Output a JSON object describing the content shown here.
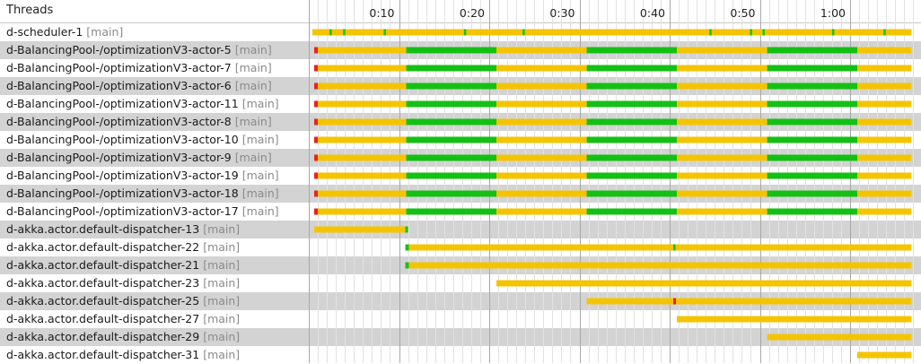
{
  "header": {
    "title": "Threads"
  },
  "timeline": {
    "ticks": [
      "0:10",
      "0:20",
      "0:30",
      "0:40",
      "0:50",
      "1:00"
    ]
  },
  "colors": {
    "running": "#f5c400",
    "blocked": "#15c015",
    "monitor": "#e82020",
    "row_alt": "#d3d3d3",
    "grid_minor": "#e2e2e2",
    "grid_major": "#a8a8a8"
  },
  "legend_hint": "yellow=waiting, green=running, red=blocked (colors visible only)",
  "threads": [
    {
      "name": "d-scheduler-1",
      "tag": "[main]",
      "shaded": false,
      "segments": [
        {
          "from": 0.4,
          "to": 66.8,
          "state": "running"
        }
      ],
      "marks": [
        2.4,
        3.9,
        8.4,
        17.3,
        23.8,
        44.5,
        49.0,
        50.4,
        58.1,
        63.8
      ]
    },
    {
      "name": "d-BalancingPool-/optimizationV3-actor-5",
      "tag": "[main]",
      "shaded": true,
      "segments": [
        {
          "from": 0.6,
          "to": 1.0,
          "state": "monitor"
        },
        {
          "from": 1.0,
          "to": 10.8,
          "state": "running"
        },
        {
          "from": 10.8,
          "to": 20.8,
          "state": "blocked"
        },
        {
          "from": 20.8,
          "to": 30.8,
          "state": "running"
        },
        {
          "from": 30.8,
          "to": 40.8,
          "state": "blocked"
        },
        {
          "from": 40.8,
          "to": 50.8,
          "state": "running"
        },
        {
          "from": 50.8,
          "to": 60.8,
          "state": "blocked"
        },
        {
          "from": 60.8,
          "to": 66.8,
          "state": "running"
        }
      ],
      "marks": []
    },
    {
      "name": "d-BalancingPool-/optimizationV3-actor-7",
      "tag": "[main]",
      "shaded": false,
      "segments": [
        {
          "from": 0.6,
          "to": 1.0,
          "state": "monitor"
        },
        {
          "from": 1.0,
          "to": 10.8,
          "state": "running"
        },
        {
          "from": 10.8,
          "to": 20.8,
          "state": "blocked"
        },
        {
          "from": 20.8,
          "to": 30.8,
          "state": "running"
        },
        {
          "from": 30.8,
          "to": 40.8,
          "state": "blocked"
        },
        {
          "from": 40.8,
          "to": 50.8,
          "state": "running"
        },
        {
          "from": 50.8,
          "to": 60.8,
          "state": "blocked"
        },
        {
          "from": 60.8,
          "to": 66.8,
          "state": "running"
        }
      ],
      "marks": []
    },
    {
      "name": "d-BalancingPool-/optimizationV3-actor-6",
      "tag": "[main]",
      "shaded": true,
      "segments": [
        {
          "from": 0.6,
          "to": 1.0,
          "state": "monitor"
        },
        {
          "from": 1.0,
          "to": 10.8,
          "state": "running"
        },
        {
          "from": 10.8,
          "to": 20.8,
          "state": "blocked"
        },
        {
          "from": 20.8,
          "to": 30.8,
          "state": "running"
        },
        {
          "from": 30.8,
          "to": 40.8,
          "state": "blocked"
        },
        {
          "from": 40.8,
          "to": 50.8,
          "state": "running"
        },
        {
          "from": 50.8,
          "to": 60.8,
          "state": "blocked"
        },
        {
          "from": 60.8,
          "to": 66.8,
          "state": "running"
        }
      ],
      "marks": []
    },
    {
      "name": "d-BalancingPool-/optimizationV3-actor-11",
      "tag": "[main]",
      "shaded": false,
      "segments": [
        {
          "from": 0.6,
          "to": 1.0,
          "state": "monitor"
        },
        {
          "from": 1.0,
          "to": 10.8,
          "state": "running"
        },
        {
          "from": 10.8,
          "to": 20.8,
          "state": "blocked"
        },
        {
          "from": 20.8,
          "to": 30.8,
          "state": "running"
        },
        {
          "from": 30.8,
          "to": 40.8,
          "state": "blocked"
        },
        {
          "from": 40.8,
          "to": 50.8,
          "state": "running"
        },
        {
          "from": 50.8,
          "to": 60.8,
          "state": "blocked"
        },
        {
          "from": 60.8,
          "to": 66.8,
          "state": "running"
        }
      ],
      "marks": []
    },
    {
      "name": "d-BalancingPool-/optimizationV3-actor-8",
      "tag": "[main]",
      "shaded": true,
      "segments": [
        {
          "from": 0.6,
          "to": 1.0,
          "state": "monitor"
        },
        {
          "from": 1.0,
          "to": 10.8,
          "state": "running"
        },
        {
          "from": 10.8,
          "to": 20.8,
          "state": "blocked"
        },
        {
          "from": 20.8,
          "to": 30.8,
          "state": "running"
        },
        {
          "from": 30.8,
          "to": 40.8,
          "state": "blocked"
        },
        {
          "from": 40.8,
          "to": 50.8,
          "state": "running"
        },
        {
          "from": 50.8,
          "to": 60.8,
          "state": "blocked"
        },
        {
          "from": 60.8,
          "to": 66.8,
          "state": "running"
        }
      ],
      "marks": []
    },
    {
      "name": "d-BalancingPool-/optimizationV3-actor-10",
      "tag": "[main]",
      "shaded": false,
      "segments": [
        {
          "from": 0.6,
          "to": 1.0,
          "state": "monitor"
        },
        {
          "from": 1.0,
          "to": 10.8,
          "state": "running"
        },
        {
          "from": 10.8,
          "to": 20.8,
          "state": "blocked"
        },
        {
          "from": 20.8,
          "to": 30.8,
          "state": "running"
        },
        {
          "from": 30.8,
          "to": 40.8,
          "state": "blocked"
        },
        {
          "from": 40.8,
          "to": 50.8,
          "state": "running"
        },
        {
          "from": 50.8,
          "to": 60.8,
          "state": "blocked"
        },
        {
          "from": 60.8,
          "to": 66.8,
          "state": "running"
        }
      ],
      "marks": []
    },
    {
      "name": "d-BalancingPool-/optimizationV3-actor-9",
      "tag": "[main]",
      "shaded": true,
      "segments": [
        {
          "from": 0.6,
          "to": 1.0,
          "state": "monitor"
        },
        {
          "from": 1.0,
          "to": 10.8,
          "state": "running"
        },
        {
          "from": 10.8,
          "to": 20.8,
          "state": "blocked"
        },
        {
          "from": 20.8,
          "to": 30.8,
          "state": "running"
        },
        {
          "from": 30.8,
          "to": 40.8,
          "state": "blocked"
        },
        {
          "from": 40.8,
          "to": 50.8,
          "state": "running"
        },
        {
          "from": 50.8,
          "to": 60.8,
          "state": "blocked"
        },
        {
          "from": 60.8,
          "to": 66.8,
          "state": "running"
        }
      ],
      "marks": []
    },
    {
      "name": "d-BalancingPool-/optimizationV3-actor-19",
      "tag": "[main]",
      "shaded": false,
      "segments": [
        {
          "from": 0.6,
          "to": 1.0,
          "state": "monitor"
        },
        {
          "from": 1.0,
          "to": 10.8,
          "state": "running"
        },
        {
          "from": 10.8,
          "to": 20.8,
          "state": "blocked"
        },
        {
          "from": 20.8,
          "to": 30.8,
          "state": "running"
        },
        {
          "from": 30.8,
          "to": 40.8,
          "state": "blocked"
        },
        {
          "from": 40.8,
          "to": 50.8,
          "state": "running"
        },
        {
          "from": 50.8,
          "to": 60.8,
          "state": "blocked"
        },
        {
          "from": 60.8,
          "to": 66.8,
          "state": "running"
        }
      ],
      "marks": []
    },
    {
      "name": "d-BalancingPool-/optimizationV3-actor-18",
      "tag": "[main]",
      "shaded": true,
      "segments": [
        {
          "from": 0.6,
          "to": 1.0,
          "state": "monitor"
        },
        {
          "from": 1.0,
          "to": 10.8,
          "state": "running"
        },
        {
          "from": 10.8,
          "to": 20.8,
          "state": "blocked"
        },
        {
          "from": 20.8,
          "to": 30.8,
          "state": "running"
        },
        {
          "from": 30.8,
          "to": 40.8,
          "state": "blocked"
        },
        {
          "from": 40.8,
          "to": 50.8,
          "state": "running"
        },
        {
          "from": 50.8,
          "to": 60.8,
          "state": "blocked"
        },
        {
          "from": 60.8,
          "to": 66.8,
          "state": "running"
        }
      ],
      "marks": []
    },
    {
      "name": "d-BalancingPool-/optimizationV3-actor-17",
      "tag": "[main]",
      "shaded": false,
      "segments": [
        {
          "from": 0.6,
          "to": 1.0,
          "state": "monitor"
        },
        {
          "from": 1.0,
          "to": 10.8,
          "state": "running"
        },
        {
          "from": 10.8,
          "to": 20.8,
          "state": "blocked"
        },
        {
          "from": 20.8,
          "to": 30.8,
          "state": "running"
        },
        {
          "from": 30.8,
          "to": 40.8,
          "state": "blocked"
        },
        {
          "from": 40.8,
          "to": 50.8,
          "state": "running"
        },
        {
          "from": 50.8,
          "to": 60.8,
          "state": "blocked"
        },
        {
          "from": 60.8,
          "to": 66.8,
          "state": "running"
        }
      ],
      "marks": []
    },
    {
      "name": "d-akka.actor.default-dispatcher-13",
      "tag": "[main]",
      "shaded": true,
      "segments": [
        {
          "from": 0.6,
          "to": 10.7,
          "state": "running"
        },
        {
          "from": 10.7,
          "to": 11.0,
          "state": "blocked"
        }
      ],
      "marks": []
    },
    {
      "name": "d-akka.actor.default-dispatcher-22",
      "tag": "[main]",
      "shaded": false,
      "segments": [
        {
          "from": 10.7,
          "to": 11.1,
          "state": "blocked"
        },
        {
          "from": 11.1,
          "to": 66.8,
          "state": "running"
        }
      ],
      "marks": [
        40.5
      ]
    },
    {
      "name": "d-akka.actor.default-dispatcher-21",
      "tag": "[main]",
      "shaded": true,
      "segments": [
        {
          "from": 10.7,
          "to": 11.1,
          "state": "blocked"
        },
        {
          "from": 11.1,
          "to": 66.8,
          "state": "running"
        }
      ],
      "marks": []
    },
    {
      "name": "d-akka.actor.default-dispatcher-23",
      "tag": "[main]",
      "shaded": false,
      "segments": [
        {
          "from": 20.8,
          "to": 66.8,
          "state": "running"
        }
      ],
      "marks": []
    },
    {
      "name": "d-akka.actor.default-dispatcher-25",
      "tag": "[main]",
      "shaded": true,
      "segments": [
        {
          "from": 30.8,
          "to": 40.4,
          "state": "running"
        },
        {
          "from": 40.4,
          "to": 40.7,
          "state": "monitor"
        },
        {
          "from": 40.7,
          "to": 66.8,
          "state": "running"
        }
      ],
      "marks": []
    },
    {
      "name": "d-akka.actor.default-dispatcher-27",
      "tag": "[main]",
      "shaded": false,
      "segments": [
        {
          "from": 40.8,
          "to": 66.8,
          "state": "running"
        }
      ],
      "marks": []
    },
    {
      "name": "d-akka.actor.default-dispatcher-29",
      "tag": "[main]",
      "shaded": true,
      "segments": [
        {
          "from": 50.8,
          "to": 66.8,
          "state": "running"
        }
      ],
      "marks": []
    },
    {
      "name": "d-akka.actor.default-dispatcher-31",
      "tag": "[main]",
      "shaded": false,
      "segments": [
        {
          "from": 60.8,
          "to": 66.8,
          "state": "running"
        }
      ],
      "marks": []
    }
  ]
}
